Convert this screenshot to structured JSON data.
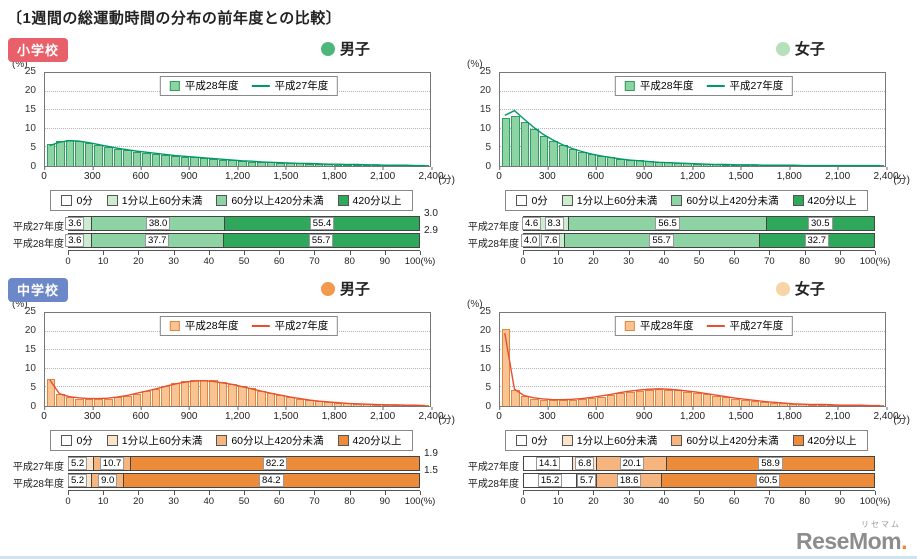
{
  "title": "〔1週間の総運動時間の分布の前年度との比較〕",
  "logo": {
    "kana": "リセマム",
    "text": "ReseMom",
    "dot": "."
  },
  "axis": {
    "y_label": "(%)",
    "y_ticks": [
      0,
      5,
      10,
      15,
      20,
      25
    ],
    "ylim": [
      0,
      25
    ],
    "x_ticks": [
      "0",
      "300",
      "600",
      "900",
      "1,200",
      "1,500",
      "1,800",
      "2,100",
      "2,400"
    ],
    "x_unit": "(分)",
    "legend_bar": "平成28年度",
    "legend_line": "平成27年度",
    "grid": "dotted-horizontal"
  },
  "stack_legend": [
    "0分",
    "1分以上60分未満",
    "60分以上420分未満",
    "420分以上"
  ],
  "percent_scale": [
    "0",
    "10",
    "20",
    "30",
    "40",
    "50",
    "60",
    "70",
    "80",
    "90",
    "100(%)"
  ],
  "palettes": {
    "green": {
      "bar": "#8ed3a3",
      "bar_border": "#2f9e60",
      "line": "#009868",
      "segs": [
        "#ffffff",
        "#cdeccf",
        "#8ed3a3",
        "#2fa85b"
      ]
    },
    "orange": {
      "bar": "#f9c493",
      "bar_border": "#e0873f",
      "line": "#e94e2e",
      "segs": [
        "#ffffff",
        "#fce4cb",
        "#f6b57e",
        "#ec8b3a"
      ]
    }
  },
  "sections": [
    {
      "badge": "小学校",
      "badge_color": "#e8606a",
      "panel_indexes": [
        0,
        1
      ]
    },
    {
      "badge": "中学校",
      "badge_color": "#6d88c9",
      "panel_indexes": [
        2,
        3
      ]
    }
  ],
  "chart_data": [
    {
      "type": "bar",
      "title": "小学校 男子",
      "school": "小学校",
      "gender": "男子",
      "palette": "green",
      "dot_color": "#4eb678",
      "x_bins_minutes": {
        "start": 0,
        "end": 2400,
        "bin_width": 60
      },
      "xlabel": "(分)",
      "ylabel": "(%)",
      "ylim": [
        0,
        25
      ],
      "series": [
        {
          "name": "平成28年度",
          "style": "bars",
          "values": [
            5.8,
            6.6,
            6.9,
            6.6,
            6.2,
            5.7,
            5.2,
            4.7,
            4.3,
            3.9,
            3.6,
            3.3,
            3.0,
            2.7,
            2.5,
            2.3,
            2.1,
            1.9,
            1.7,
            1.5,
            1.4,
            1.2,
            1.1,
            1.0,
            0.9,
            0.8,
            0.7,
            0.6,
            0.6,
            0.5,
            0.4,
            0.4,
            0.3,
            0.3,
            0.3,
            0.2,
            0.2,
            0.2,
            0.1,
            0.1
          ]
        },
        {
          "name": "平成27年度",
          "style": "line",
          "values": [
            5.5,
            6.4,
            6.8,
            6.7,
            6.3,
            5.8,
            5.3,
            4.8,
            4.4,
            4.0,
            3.7,
            3.4,
            3.1,
            2.8,
            2.6,
            2.4,
            2.2,
            2.0,
            1.8,
            1.6,
            1.4,
            1.3,
            1.1,
            1.0,
            0.9,
            0.8,
            0.7,
            0.7,
            0.6,
            0.5,
            0.5,
            0.4,
            0.4,
            0.3,
            0.3,
            0.2,
            0.2,
            0.2,
            0.1,
            0.1
          ]
        }
      ],
      "stacked_rows": [
        {
          "label": "平成27年度",
          "segments": [
            3.6,
            3.0,
            38.0,
            55.4
          ],
          "inline_labels": [
            "3.6",
            null,
            "38.0",
            "55.4"
          ],
          "outside_label": "3.0"
        },
        {
          "label": "平成28年度",
          "segments": [
            3.6,
            2.9,
            37.7,
            55.7
          ],
          "inline_labels": [
            "3.6",
            null,
            "37.7",
            "55.7"
          ],
          "outside_label": "2.9"
        }
      ]
    },
    {
      "type": "bar",
      "title": "小学校 女子",
      "school": "小学校",
      "gender": "女子",
      "palette": "green",
      "dot_color": "#b5e0bb",
      "x_bins_minutes": {
        "start": 0,
        "end": 2400,
        "bin_width": 60
      },
      "xlabel": "(分)",
      "ylabel": "(%)",
      "ylim": [
        0,
        25
      ],
      "series": [
        {
          "name": "平成28年度",
          "style": "bars",
          "values": [
            12.8,
            13.4,
            11.8,
            9.9,
            8.2,
            6.8,
            5.6,
            4.7,
            3.9,
            3.3,
            2.8,
            2.4,
            2.0,
            1.7,
            1.5,
            1.3,
            1.1,
            1.0,
            0.8,
            0.7,
            0.6,
            0.6,
            0.5,
            0.4,
            0.4,
            0.3,
            0.3,
            0.3,
            0.2,
            0.2,
            0.2,
            0.2,
            0.1,
            0.1,
            0.1,
            0.1,
            0.1,
            0.1,
            0.1,
            0.1
          ]
        },
        {
          "name": "平成27年度",
          "style": "line",
          "values": [
            13.6,
            14.9,
            12.6,
            10.4,
            8.5,
            7.0,
            5.7,
            4.7,
            3.9,
            3.2,
            2.7,
            2.3,
            1.9,
            1.6,
            1.4,
            1.2,
            1.0,
            0.9,
            0.8,
            0.7,
            0.6,
            0.5,
            0.4,
            0.4,
            0.3,
            0.3,
            0.3,
            0.2,
            0.2,
            0.2,
            0.2,
            0.1,
            0.1,
            0.1,
            0.1,
            0.1,
            0.1,
            0.1,
            0.1,
            0.1
          ]
        }
      ],
      "stacked_rows": [
        {
          "label": "平成27年度",
          "segments": [
            4.6,
            8.3,
            56.5,
            30.5
          ],
          "inline_labels": [
            "4.6",
            "8.3",
            "56.5",
            "30.5"
          ],
          "outside_label": null
        },
        {
          "label": "平成28年度",
          "segments": [
            4.0,
            7.6,
            55.7,
            32.7
          ],
          "inline_labels": [
            "4.0",
            "7.6",
            "55.7",
            "32.7"
          ],
          "outside_label": null
        }
      ]
    },
    {
      "type": "bar",
      "title": "中学校 男子",
      "school": "中学校",
      "gender": "男子",
      "palette": "orange",
      "dot_color": "#f2994e",
      "x_bins_minutes": {
        "start": 0,
        "end": 2400,
        "bin_width": 60
      },
      "xlabel": "(分)",
      "ylabel": "(%)",
      "ylim": [
        0,
        25
      ],
      "series": [
        {
          "name": "平成28年度",
          "style": "bars",
          "values": [
            7.2,
            3.1,
            2.3,
            2.0,
            1.9,
            1.9,
            2.0,
            2.3,
            2.7,
            3.3,
            4.0,
            4.7,
            5.4,
            6.1,
            6.7,
            7.0,
            7.1,
            6.9,
            6.5,
            6.0,
            5.4,
            4.8,
            4.1,
            3.5,
            3.0,
            2.5,
            2.0,
            1.7,
            1.4,
            1.1,
            0.9,
            0.7,
            0.6,
            0.5,
            0.4,
            0.3,
            0.3,
            0.2,
            0.2,
            0.1
          ]
        },
        {
          "name": "平成27年度",
          "style": "line",
          "values": [
            7.0,
            3.3,
            2.5,
            2.2,
            2.0,
            2.0,
            2.1,
            2.4,
            2.8,
            3.4,
            4.0,
            4.6,
            5.3,
            5.9,
            6.4,
            6.7,
            6.8,
            6.6,
            6.2,
            5.8,
            5.2,
            4.6,
            4.0,
            3.4,
            2.9,
            2.4,
            2.0,
            1.6,
            1.3,
            1.1,
            0.9,
            0.7,
            0.6,
            0.5,
            0.4,
            0.3,
            0.3,
            0.2,
            0.2,
            0.1
          ]
        }
      ],
      "stacked_rows": [
        {
          "label": "平成27年度",
          "segments": [
            5.2,
            1.9,
            10.7,
            82.2
          ],
          "inline_labels": [
            "5.2",
            null,
            "10.7",
            "82.2"
          ],
          "outside_label": "1.9"
        },
        {
          "label": "平成28年度",
          "segments": [
            5.2,
            1.5,
            9.0,
            84.2
          ],
          "inline_labels": [
            "5.2",
            null,
            "9.0",
            "84.2"
          ],
          "outside_label": "1.5"
        }
      ]
    },
    {
      "type": "bar",
      "title": "中学校 女子",
      "school": "中学校",
      "gender": "女子",
      "palette": "orange",
      "dot_color": "#f8d4a8",
      "x_bins_minutes": {
        "start": 0,
        "end": 2400,
        "bin_width": 60
      },
      "xlabel": "(分)",
      "ylabel": "(%)",
      "ylim": [
        0,
        25
      ],
      "series": [
        {
          "name": "平成28年度",
          "style": "bars",
          "values": [
            20.8,
            4.2,
            2.6,
            2.0,
            1.7,
            1.6,
            1.5,
            1.6,
            1.8,
            2.1,
            2.5,
            2.9,
            3.4,
            3.8,
            4.1,
            4.4,
            4.5,
            4.4,
            4.2,
            3.9,
            3.6,
            3.2,
            2.8,
            2.4,
            2.0,
            1.7,
            1.4,
            1.1,
            0.9,
            0.7,
            0.6,
            0.5,
            0.4,
            0.3,
            0.3,
            0.2,
            0.2,
            0.1,
            0.1,
            0.1
          ]
        },
        {
          "name": "平成27年度",
          "style": "line",
          "values": [
            19.6,
            4.5,
            2.8,
            2.2,
            1.9,
            1.7,
            1.7,
            1.8,
            2.0,
            2.3,
            2.7,
            3.1,
            3.6,
            4.0,
            4.3,
            4.5,
            4.6,
            4.5,
            4.3,
            4.0,
            3.7,
            3.3,
            2.9,
            2.5,
            2.1,
            1.8,
            1.5,
            1.2,
            1.0,
            0.8,
            0.6,
            0.5,
            0.4,
            0.4,
            0.3,
            0.2,
            0.2,
            0.2,
            0.1,
            0.1
          ]
        }
      ],
      "stacked_rows": [
        {
          "label": "平成27年度",
          "segments": [
            14.1,
            6.8,
            20.1,
            58.9
          ],
          "inline_labels": [
            "14.1",
            "6.8",
            "20.1",
            "58.9"
          ],
          "outside_label": null
        },
        {
          "label": "平成28年度",
          "segments": [
            15.2,
            5.7,
            18.6,
            60.5
          ],
          "inline_labels": [
            "15.2",
            "5.7",
            "18.6",
            "60.5"
          ],
          "outside_label": null
        }
      ]
    }
  ]
}
